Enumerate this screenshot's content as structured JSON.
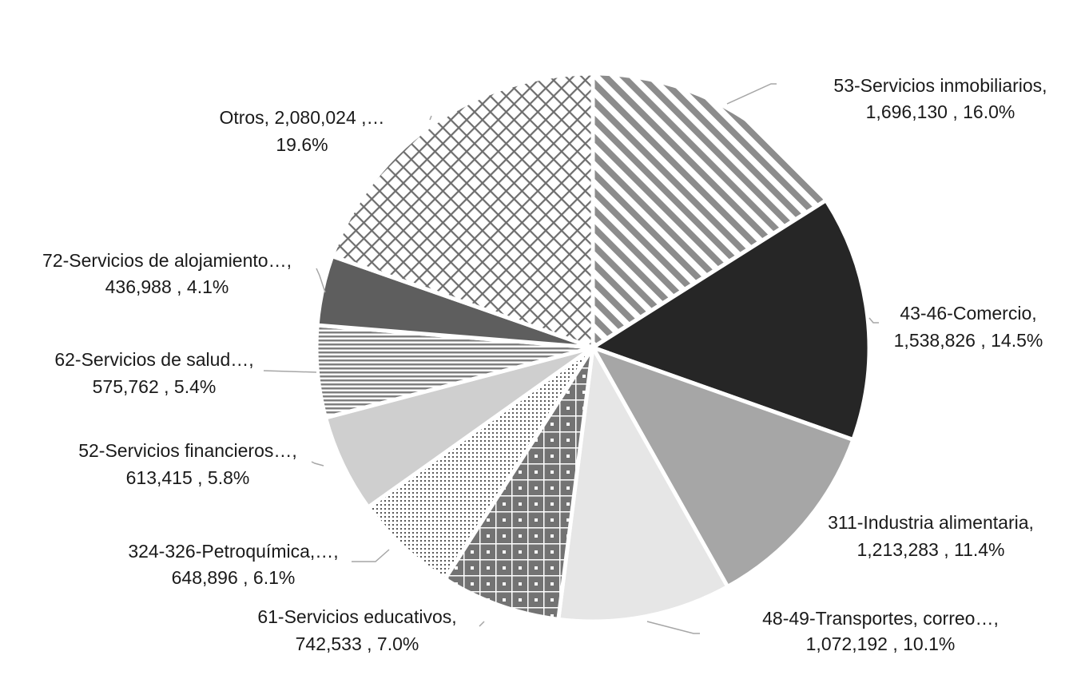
{
  "chart_data": {
    "type": "pie",
    "title": "",
    "start_angle_deg": 0,
    "direction": "clockwise",
    "slices": [
      {
        "label": "53-Servicios inmobiliarios,",
        "value": 1696130,
        "value_text": "1,696,130",
        "percent_text": "16.0%",
        "fill": "stripes-diag",
        "color": "#8c8c8c"
      },
      {
        "label": "43-46-Comercio,",
        "value": 1538826,
        "value_text": "1,538,826",
        "percent_text": "14.5%",
        "fill": "solid",
        "color": "#262626"
      },
      {
        "label": "311-Industria alimentaria,",
        "value": 1213283,
        "value_text": "1,213,283",
        "percent_text": "11.4%",
        "fill": "solid",
        "color": "#a6a6a6"
      },
      {
        "label": "48-49-Transportes, correo…,",
        "value": 1072192,
        "value_text": "1,072,192",
        "percent_text": "10.1%",
        "fill": "solid",
        "color": "#e6e6e6"
      },
      {
        "label": "61-Servicios educativos,",
        "value": 742533,
        "value_text": "742,533",
        "percent_text": "7.0%",
        "fill": "dots-grid",
        "color": "#737373"
      },
      {
        "label": "324-326-Petroquímica,…,",
        "value": 648896,
        "value_text": "648,896",
        "percent_text": "6.1%",
        "fill": "dots-fine",
        "color": "#595959"
      },
      {
        "label": "52-Servicios financieros…,",
        "value": 613415,
        "value_text": "613,415",
        "percent_text": "5.8%",
        "fill": "solid",
        "color": "#cfcfcf"
      },
      {
        "label": "62-Servicios de salud…,",
        "value": 575762,
        "value_text": "575,762",
        "percent_text": "5.4%",
        "fill": "stripes-horiz",
        "color": "#7f7f7f"
      },
      {
        "label": "72-Servicios de alojamiento…,",
        "value": 436988,
        "value_text": "436,988",
        "percent_text": "4.1%",
        "fill": "solid",
        "color": "#5e5e5e"
      },
      {
        "label": "Otros,  2,080,024 ,…",
        "value": 2080024,
        "value_text": "",
        "percent_text": "19.6%",
        "fill": "crosshatch",
        "color": "#8c8c8c"
      }
    ],
    "labels": [
      {
        "line1": "53-Servicios inmobiliarios,",
        "line2": "1,696,130 , 16.0%"
      },
      {
        "line1": "43-46-Comercio,",
        "line2": "1,538,826 , 14.5%"
      },
      {
        "line1": "311-Industria alimentaria,",
        "line2": "1,213,283 , 11.4%"
      },
      {
        "line1": "48-49-Transportes, correo…,",
        "line2": "1,072,192 , 10.1%"
      },
      {
        "line1": "61-Servicios educativos,",
        "line2": "742,533 , 7.0%"
      },
      {
        "line1": "324-326-Petroquímica,…,",
        "line2": "648,896 , 6.1%"
      },
      {
        "line1": "52-Servicios financieros…,",
        "line2": "613,415 , 5.8%"
      },
      {
        "line1": "62-Servicios de salud…,",
        "line2": "575,762 , 5.4%"
      },
      {
        "line1": "72-Servicios de alojamiento…,",
        "line2": "436,988 , 4.1%"
      },
      {
        "line1": "Otros,  2,080,024 ,…",
        "line2": "19.6%"
      }
    ],
    "legend": "none",
    "grid": false
  }
}
